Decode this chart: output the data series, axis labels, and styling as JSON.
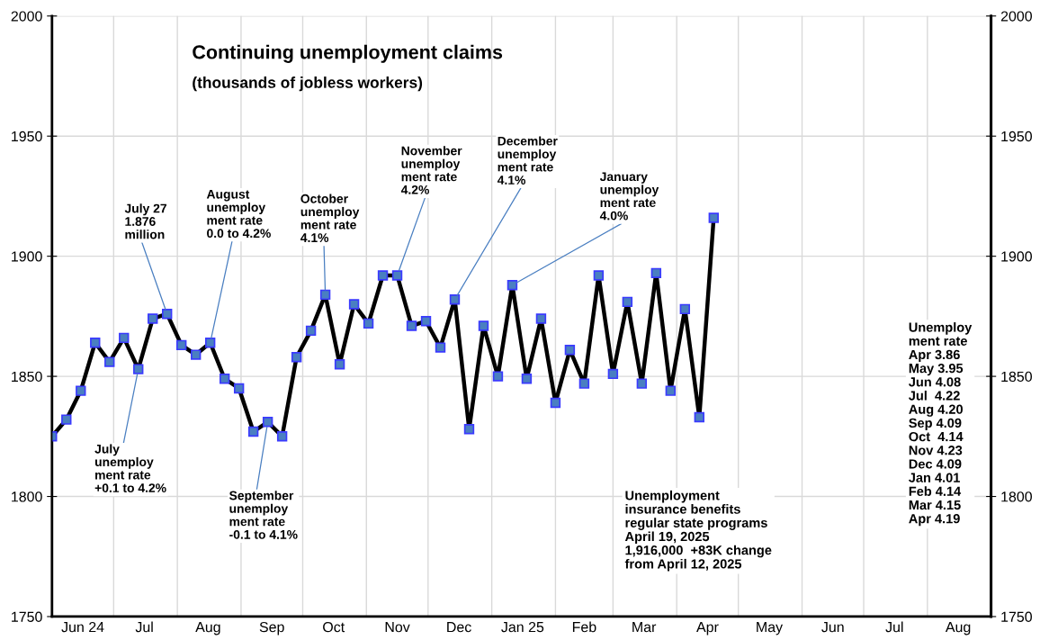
{
  "chart_data": {
    "type": "line",
    "title": "Continuing unemployment claims",
    "subtitle": "(thousands of jobless workers)",
    "x": [
      "2024-06-01",
      "2024-06-08",
      "2024-06-15",
      "2024-06-22",
      "2024-06-29",
      "2024-07-06",
      "2024-07-13",
      "2024-07-20",
      "2024-07-27",
      "2024-08-03",
      "2024-08-10",
      "2024-08-17",
      "2024-08-24",
      "2024-08-31",
      "2024-09-07",
      "2024-09-14",
      "2024-09-21",
      "2024-09-28",
      "2024-10-05",
      "2024-10-12",
      "2024-10-19",
      "2024-10-26",
      "2024-11-02",
      "2024-11-09",
      "2024-11-16",
      "2024-11-23",
      "2024-11-30",
      "2024-12-07",
      "2024-12-14",
      "2024-12-21",
      "2024-12-28",
      "2025-01-04",
      "2025-01-11",
      "2025-01-18",
      "2025-01-25",
      "2025-02-01",
      "2025-02-08",
      "2025-02-15",
      "2025-02-22",
      "2025-03-01",
      "2025-03-08",
      "2025-03-15",
      "2025-03-22",
      "2025-03-29",
      "2025-04-05",
      "2025-04-12",
      "2025-04-19"
    ],
    "series": [
      {
        "color": "#000000",
        "values": [
          1825,
          1832,
          1844,
          1864,
          1856,
          1866,
          1853,
          1874,
          1876,
          1863,
          1859,
          1864,
          1849,
          1845,
          1827,
          1831,
          1825,
          1858,
          1869,
          1884,
          1855,
          1880,
          1872,
          1892,
          1892,
          1871,
          1873,
          1862,
          1882,
          1828,
          1871,
          1850,
          1888,
          1849,
          1874,
          1839,
          1861,
          1847,
          1892,
          1851,
          1881,
          1847,
          1893,
          1844,
          1878,
          1833,
          1916
        ]
      }
    ],
    "marker": "square",
    "line_style": "solid",
    "grid": true,
    "xlim": [
      "2024-06-01",
      "2025-09-01"
    ],
    "xticks": [
      {
        "value": "2024-06-16",
        "label": "Jun 24"
      },
      {
        "value": "2024-07-01",
        "label": null
      },
      {
        "value": "2024-07-16",
        "label": "Jul"
      },
      {
        "value": "2024-08-01",
        "label": null
      },
      {
        "value": "2024-08-16",
        "label": "Aug"
      },
      {
        "value": "2024-09-01",
        "label": null
      },
      {
        "value": "2024-09-16",
        "label": "Sep"
      },
      {
        "value": "2024-10-01",
        "label": null
      },
      {
        "value": "2024-10-16",
        "label": "Oct"
      },
      {
        "value": "2024-11-01",
        "label": null
      },
      {
        "value": "2024-11-16",
        "label": "Nov"
      },
      {
        "value": "2024-12-01",
        "label": null
      },
      {
        "value": "2024-12-16",
        "label": "Dec"
      },
      {
        "value": "2025-01-01",
        "label": null
      },
      {
        "value": "2025-01-16",
        "label": "Jan 25"
      },
      {
        "value": "2025-02-01",
        "label": null
      },
      {
        "value": "2025-02-15",
        "label": "Feb"
      },
      {
        "value": "2025-03-01",
        "label": null
      },
      {
        "value": "2025-03-16",
        "label": "Mar"
      },
      {
        "value": "2025-04-01",
        "label": null
      },
      {
        "value": "2025-04-16",
        "label": "Apr"
      },
      {
        "value": "2025-05-01",
        "label": null
      },
      {
        "value": "2025-05-16",
        "label": "May"
      },
      {
        "value": "2025-06-01",
        "label": null
      },
      {
        "value": "2025-06-16",
        "label": "Jun"
      },
      {
        "value": "2025-07-01",
        "label": null
      },
      {
        "value": "2025-07-16",
        "label": "Jul"
      },
      {
        "value": "2025-08-01",
        "label": null
      },
      {
        "value": "2025-08-16",
        "label": "Aug"
      }
    ],
    "ylim": [
      1750,
      2000
    ],
    "yticks": [
      1750,
      1800,
      1850,
      1900,
      1950,
      2000
    ],
    "y2lim": [
      1750,
      2000
    ],
    "y2ticks": [
      1750,
      1800,
      1850,
      1900,
      1950,
      2000
    ],
    "annotations": [
      {
        "text": "July\nunemploy\nment rate\n+0.1 to 4.2%",
        "x": "2024-07-13",
        "y": 1853
      },
      {
        "text": "July 27\n1.876\nmillion",
        "x": "2024-07-27",
        "y": 1876
      },
      {
        "text": "August\nunemploy\nment rate\n0.0 to 4.2%",
        "x": "2024-08-17",
        "y": 1864
      },
      {
        "text": "September\nunemploy\nment rate\n-0.1 to 4.1%",
        "x": "2024-09-14",
        "y": 1831
      },
      {
        "text": "October\nunemploy\nment rate\n4.1%",
        "x": "2024-10-12",
        "y": 1884
      },
      {
        "text": "November\nunemploy\nment rate\n4.2%",
        "x": "2024-11-16",
        "y": 1892
      },
      {
        "text": "December\nunemploy\nment rate\n4.1%",
        "x": "2024-12-14",
        "y": 1882
      },
      {
        "text": "January\nunemploy\nment rate\n4.0%",
        "x": "2025-01-11",
        "y": 1888
      },
      "Unemployment\ninsurance benefits\nregular state programs\nApril 19, 2025\n1,916,000  +83K change\nfrom April 12, 2025",
      "Unemploy\nment rate\nApr 3.86\nMay 3.95\nJun 4.08\nJul  4.22\nAug 4.20\nSep 4.09\nOct  4.14\nNov 4.23\nDec 4.09\nJan 4.01\nFeb 4.14\nMar 4.15\nApr 4.19"
    ]
  }
}
